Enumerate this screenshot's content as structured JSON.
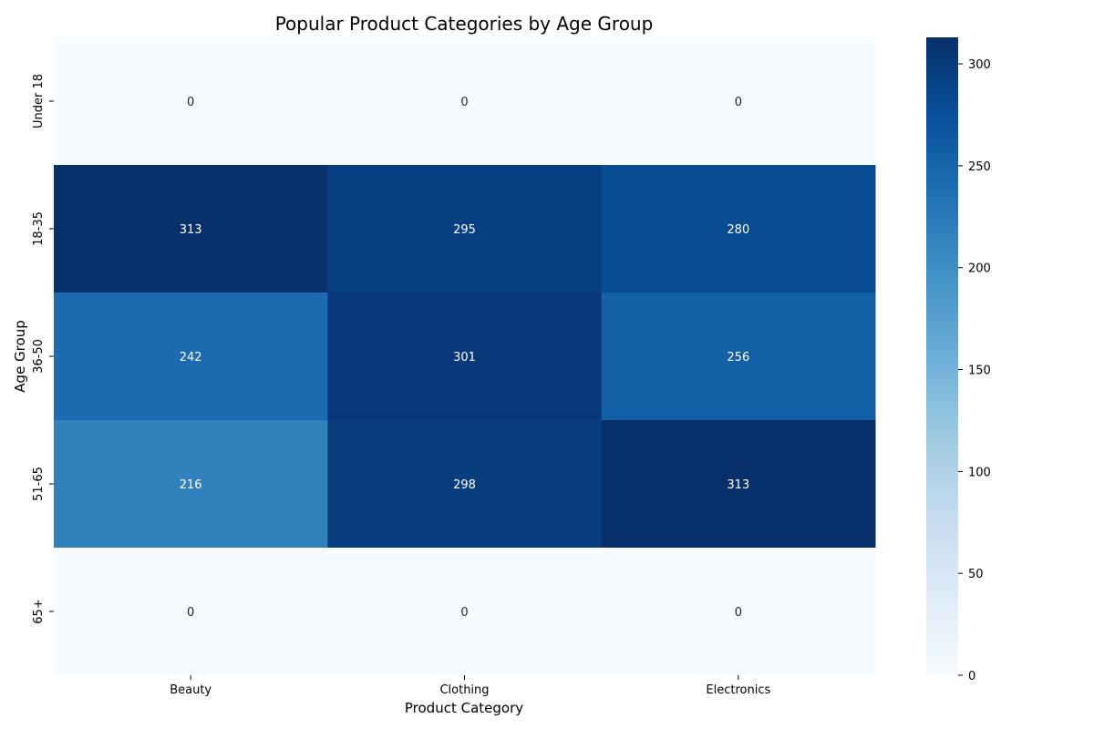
{
  "chart_data": {
    "type": "heatmap",
    "title": "Popular Product Categories by Age Group",
    "xlabel": "Product Category",
    "ylabel": "Age Group",
    "x_categories": [
      "Beauty",
      "Clothing",
      "Electronics"
    ],
    "y_categories": [
      "Under 18",
      "18-35",
      "36-50",
      "51-65",
      "65+"
    ],
    "values": [
      [
        0,
        0,
        0
      ],
      [
        313,
        295,
        280
      ],
      [
        242,
        301,
        256
      ],
      [
        216,
        298,
        313
      ],
      [
        0,
        0,
        0
      ]
    ],
    "colorbar": {
      "min": 0,
      "max": 313,
      "ticks": [
        0,
        50,
        100,
        150,
        200,
        250,
        300
      ],
      "tick_labels": [
        "0",
        "50",
        "100",
        "150",
        "200",
        "250",
        "300"
      ],
      "colormap": "Blues"
    },
    "annotations": true,
    "grid": false
  }
}
